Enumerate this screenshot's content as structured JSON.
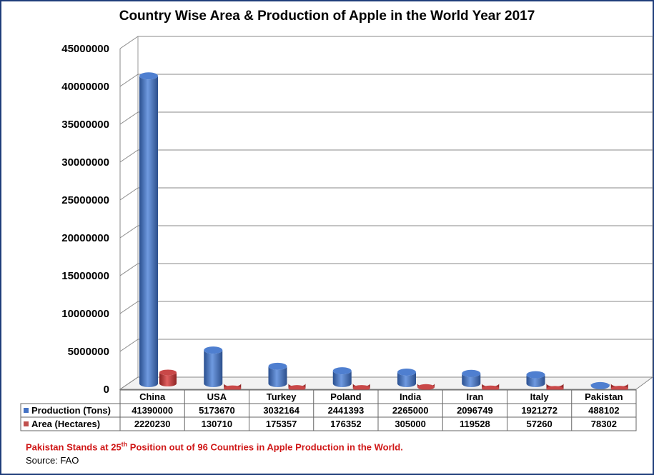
{
  "chart_data": {
    "type": "bar",
    "title": "Country Wise Area & Production of Apple in the World Year 2017",
    "categories": [
      "China",
      "USA",
      "Turkey",
      "Poland",
      "India",
      "Iran",
      "Italy",
      "Pakistan"
    ],
    "series": [
      {
        "name": "Production (Tons)",
        "values": [
          41390000,
          5173670,
          3032164,
          2441393,
          2265000,
          2096749,
          1921272,
          488102
        ]
      },
      {
        "name": "Area (Hectares)",
        "values": [
          2220230,
          130710,
          175357,
          176352,
          305000,
          119528,
          57260,
          78302
        ]
      }
    ],
    "series_values_text": [
      [
        "41390000",
        "5173670",
        "3032164",
        "2441393",
        "2265000",
        "2096749",
        "1921272",
        "488102"
      ],
      [
        "2220230",
        "130710",
        "175357",
        "176352",
        "305000",
        "119528",
        "57260",
        "78302"
      ]
    ],
    "yticks": [
      "0",
      "5000000",
      "10000000",
      "15000000",
      "20000000",
      "25000000",
      "30000000",
      "35000000",
      "40000000",
      "45000000"
    ],
    "ylim": [
      0,
      45000000
    ],
    "grid": true,
    "legend": "data-table",
    "style": "3d-cylinder",
    "colors": {
      "production": "#4472c4",
      "area": "#c0504d"
    }
  },
  "footer": {
    "note_before": "Pakistan Stands at 25",
    "note_sup": "th",
    "note_after": " Position out of 96 Countries in Apple Production in the World.",
    "source": "Source: FAO"
  }
}
